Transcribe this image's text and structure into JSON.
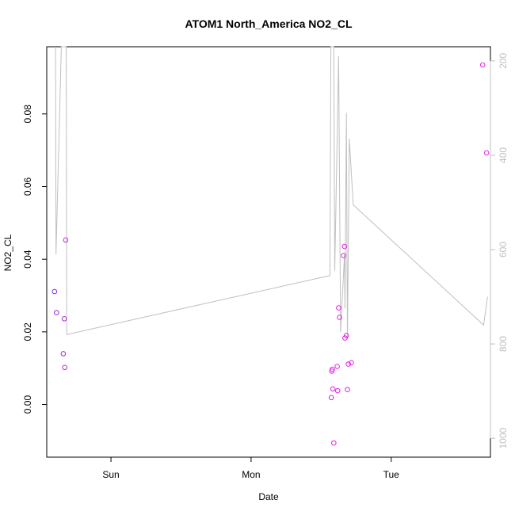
{
  "chart_data": {
    "type": "scatter",
    "title": "ATOM1 North_America NO2_CL",
    "xlabel": "Date",
    "ylabel": "NO2_CL",
    "x_axis": {
      "kind": "datetime",
      "tick_labels": [
        "Sun",
        "Mon",
        "Tue"
      ],
      "tick_positions": [
        "2016-07-31T00:00",
        "2016-08-01T00:00",
        "2016-08-02T00:00"
      ],
      "range": [
        "2016-07-30T13:00",
        "2016-08-02T17:00"
      ]
    },
    "y_axis": {
      "range": [
        -0.0145,
        0.0985
      ],
      "ticks": [
        0.0,
        0.02,
        0.04,
        0.06,
        0.08
      ],
      "tick_labels": [
        "0.00",
        "0.02",
        "0.04",
        "0.06",
        "0.08"
      ]
    },
    "y2_axis": {
      "range": [
        1040,
        170
      ],
      "reversed": true,
      "ticks": [
        200,
        400,
        600,
        800,
        1000
      ],
      "tick_labels": [
        "200",
        "400",
        "600",
        "800",
        "1000"
      ],
      "color": "#c0c0c0"
    },
    "grid": false,
    "colors": {
      "point_early": "#8a2be2",
      "point_late": "#e61ee6",
      "line": "#c0c0c0",
      "axis": "#000000"
    },
    "series": [
      {
        "type": "points",
        "axis": "left",
        "points": [
          {
            "x": "2016-07-30T14:20",
            "y": 0.0311
          },
          {
            "x": "2016-07-30T14:40",
            "y": 0.0253
          },
          {
            "x": "2016-07-30T15:50",
            "y": 0.014
          },
          {
            "x": "2016-07-30T16:00",
            "y": 0.0236
          },
          {
            "x": "2016-07-30T16:05",
            "y": 0.0102
          },
          {
            "x": "2016-07-30T16:15",
            "y": 0.0453
          },
          {
            "x": "2016-08-01T13:45",
            "y": 0.0019
          },
          {
            "x": "2016-08-01T13:50",
            "y": 0.0092
          },
          {
            "x": "2016-08-01T13:55",
            "y": 0.0097
          },
          {
            "x": "2016-08-01T14:00",
            "y": 0.0043
          },
          {
            "x": "2016-08-01T14:10",
            "y": -0.0106
          },
          {
            "x": "2016-08-01T14:45",
            "y": 0.0105
          },
          {
            "x": "2016-08-01T14:50",
            "y": 0.0038
          },
          {
            "x": "2016-08-01T15:00",
            "y": 0.0266
          },
          {
            "x": "2016-08-01T15:10",
            "y": 0.024
          },
          {
            "x": "2016-08-01T15:50",
            "y": 0.041
          },
          {
            "x": "2016-08-01T16:00",
            "y": 0.0435
          },
          {
            "x": "2016-08-01T16:05",
            "y": 0.0183
          },
          {
            "x": "2016-08-01T16:20",
            "y": 0.019
          },
          {
            "x": "2016-08-01T16:30",
            "y": 0.0041
          },
          {
            "x": "2016-08-01T16:40",
            "y": 0.0111
          },
          {
            "x": "2016-08-01T17:10",
            "y": 0.0115
          },
          {
            "x": "2016-08-02T15:40",
            "y": 0.0935
          },
          {
            "x": "2016-08-02T16:20",
            "y": 0.0693
          }
        ]
      },
      {
        "type": "line",
        "axis": "right",
        "points": [
          {
            "x": "2016-07-30T14:30",
            "y": 170
          },
          {
            "x": "2016-07-30T14:35",
            "y": 610
          },
          {
            "x": "2016-07-30T15:30",
            "y": 170
          },
          {
            "x": "2016-07-30T16:20",
            "y": 170
          },
          {
            "x": "2016-07-30T16:25",
            "y": 780
          },
          {
            "x": "2016-08-01T13:30",
            "y": 655
          },
          {
            "x": "2016-08-01T13:40",
            "y": 170
          },
          {
            "x": "2016-08-01T14:10",
            "y": 170
          },
          {
            "x": "2016-08-01T14:20",
            "y": 645
          },
          {
            "x": "2016-08-01T15:00",
            "y": 190
          },
          {
            "x": "2016-08-01T15:20",
            "y": 775
          },
          {
            "x": "2016-08-01T16:00",
            "y": 610
          },
          {
            "x": "2016-08-01T16:05",
            "y": 725
          },
          {
            "x": "2016-08-01T16:20",
            "y": 310
          },
          {
            "x": "2016-08-01T16:30",
            "y": 790
          },
          {
            "x": "2016-08-01T16:50",
            "y": 365
          },
          {
            "x": "2016-08-01T17:30",
            "y": 505
          },
          {
            "x": "2016-08-02T15:50",
            "y": 760
          },
          {
            "x": "2016-08-02T16:30",
            "y": 700
          }
        ]
      }
    ]
  }
}
